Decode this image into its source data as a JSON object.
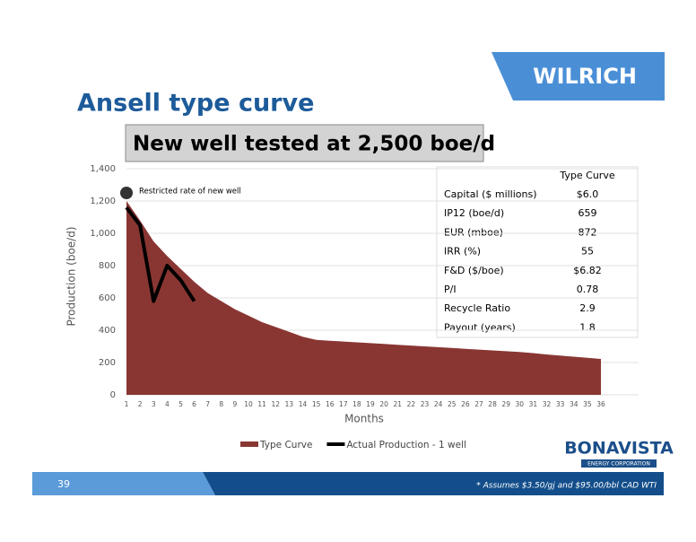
{
  "brand": "WILRICH",
  "title": "Ansell type curve",
  "banner": "New well tested at 2,500 boe/d",
  "chart_data": {
    "type": "area-line",
    "ylabel": "Production (boe/d)",
    "xlabel": "Months",
    "x": [
      1,
      2,
      3,
      4,
      5,
      6,
      7,
      8,
      9,
      10,
      11,
      12,
      13,
      14,
      15,
      16,
      17,
      18,
      19,
      20,
      21,
      22,
      23,
      24,
      25,
      26,
      27,
      28,
      29,
      30,
      31,
      32,
      33,
      34,
      35,
      36
    ],
    "xlim": [
      1,
      36
    ],
    "xticks": [
      1,
      2,
      3,
      4,
      5,
      6,
      7,
      8,
      9,
      10,
      11,
      12,
      13,
      14,
      15,
      16,
      17,
      18,
      19,
      20,
      21,
      22,
      23,
      24,
      25,
      26,
      27,
      28,
      29,
      30,
      31,
      32,
      33,
      34,
      35,
      36
    ],
    "ylim": [
      0,
      1400
    ],
    "yticks": [
      0,
      200,
      400,
      600,
      800,
      {
        "value": 1000,
        "label": "1,000"
      },
      {
        "value": 1200,
        "label": "1,200"
      },
      {
        "value": 1400,
        "label": "1,400"
      }
    ],
    "grid": true,
    "series": [
      {
        "name": "Type Curve",
        "color": "#893633",
        "kind": "area",
        "values": [
          1200,
          1080,
          950,
          860,
          780,
          700,
          630,
          580,
          530,
          490,
          450,
          420,
          390,
          360,
          340,
          335,
          330,
          325,
          320,
          315,
          310,
          305,
          300,
          295,
          290,
          285,
          280,
          275,
          270,
          265,
          258,
          250,
          243,
          236,
          229,
          222
        ]
      },
      {
        "name": "Actual Production - 1 well",
        "color": "#000000",
        "kind": "line",
        "values": [
          1160,
          1050,
          580,
          800,
          710,
          580,
          null,
          null,
          null,
          null,
          null,
          null,
          null,
          null,
          null,
          null,
          null,
          null,
          null,
          null,
          null,
          null,
          null,
          null,
          null,
          null,
          null,
          null,
          null,
          null,
          null,
          null,
          null,
          null,
          null,
          null
        ]
      }
    ],
    "annotation": {
      "text": "Restricted rate of new well",
      "x": 1,
      "value": 1250
    }
  },
  "table": {
    "header": "Type Curve",
    "rows": [
      [
        "Capital ($ millions)",
        "$6.0"
      ],
      [
        "IP12 (boe/d)",
        "659"
      ],
      [
        "EUR (mboe)",
        "872"
      ],
      [
        "IRR (%)",
        "55"
      ],
      [
        "F&D ($/boe)",
        "$6.82"
      ],
      [
        "P/I",
        "0.78"
      ],
      [
        "Recycle Ratio",
        "2.9"
      ],
      [
        "Payout (years)",
        "1.8"
      ]
    ]
  },
  "logo": {
    "name": "BONAVISTA",
    "tagline": "ENERGY CORPORATION"
  },
  "footer": {
    "page": "39",
    "note": "* Assumes $3.50/gj and $95.00/bbl CAD WTI"
  }
}
